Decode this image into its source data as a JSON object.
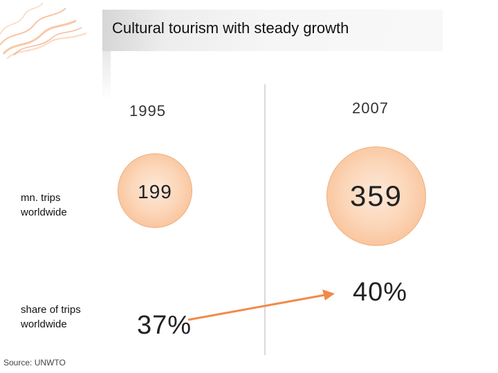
{
  "slide": {
    "title": "Cultural tourism with steady growth",
    "source": "Source: UNWTO"
  },
  "columns": {
    "year_left": "1995",
    "year_right": "2007"
  },
  "rows": {
    "trips_label": "mn. trips worldwide",
    "share_label": "share of trips worldwide"
  },
  "values": {
    "trips_1995": "199",
    "trips_2007": "359",
    "share_1995": "37%",
    "share_2007": "40%"
  },
  "colors": {
    "accent": "#f08a4b",
    "circle_fill": "#fcd6b8"
  },
  "icons": {
    "logo": "orange-smoke-swirl-icon",
    "arrow": "growth-arrow-icon"
  }
}
